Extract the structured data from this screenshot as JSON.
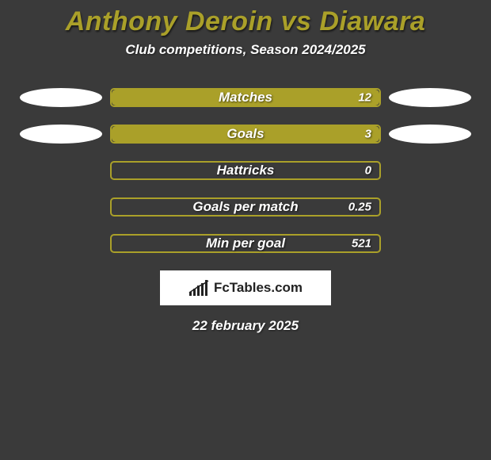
{
  "colors": {
    "background": "#3a3a3a",
    "title": "#aaa029",
    "bar_fill": "#aaa029",
    "bar_border": "#aaa029",
    "bar_empty": "#3a3a3a",
    "ellipse": "#ffffff",
    "text_white": "#ffffff",
    "logo_bg": "#ffffff",
    "logo_fg": "#222222"
  },
  "title": "Anthony Deroin vs Diawara",
  "subtitle": "Club competitions, Season 2024/2025",
  "date": "22 february 2025",
  "logo_text": "FcTables.com",
  "stats": [
    {
      "label": "Matches",
      "value": "12",
      "fill_pct": 100,
      "show_left_ellipse": true,
      "show_right_ellipse": true
    },
    {
      "label": "Goals",
      "value": "3",
      "fill_pct": 100,
      "show_left_ellipse": true,
      "show_right_ellipse": true
    },
    {
      "label": "Hattricks",
      "value": "0",
      "fill_pct": 0,
      "show_left_ellipse": false,
      "show_right_ellipse": false
    },
    {
      "label": "Goals per match",
      "value": "0.25",
      "fill_pct": 0,
      "show_left_ellipse": false,
      "show_right_ellipse": false
    },
    {
      "label": "Min per goal",
      "value": "521",
      "fill_pct": 0,
      "show_left_ellipse": false,
      "show_right_ellipse": false
    }
  ]
}
